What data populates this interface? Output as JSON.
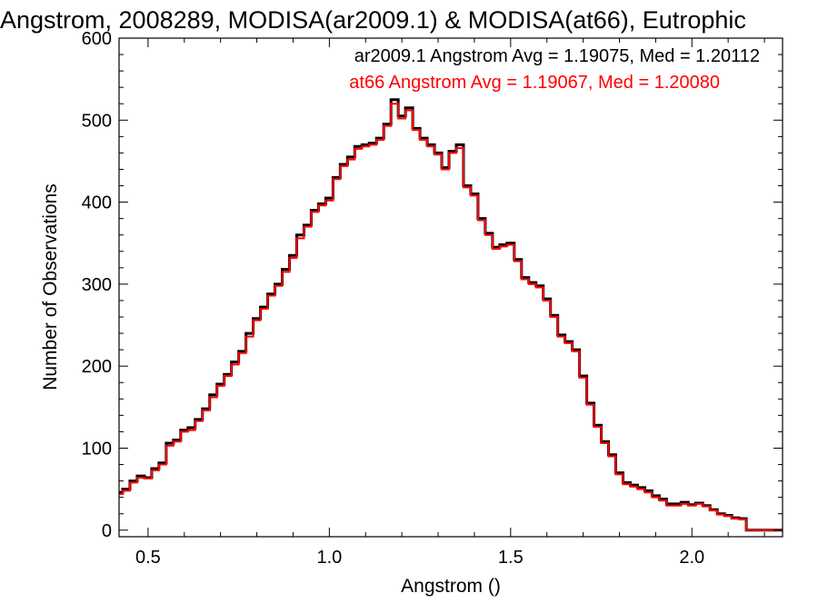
{
  "chart_data": {
    "type": "line",
    "title": "Angstrom, 2008289, MODISA(ar2009.1) & MODISA(at66), Eutrophic",
    "xlabel": "Angstrom ()",
    "ylabel": "Number of Observations",
    "xlim": [
      0.42,
      2.25
    ],
    "ylim": [
      -8,
      600
    ],
    "xticks": [
      {
        "value": 0.5,
        "label": "0.5"
      },
      {
        "value": 1.0,
        "label": "1.0"
      },
      {
        "value": 1.5,
        "label": "1.5"
      },
      {
        "value": 2.0,
        "label": "2.0"
      }
    ],
    "yticks": [
      {
        "value": 0,
        "label": "0"
      },
      {
        "value": 100,
        "label": "100"
      },
      {
        "value": 200,
        "label": "200"
      },
      {
        "value": 300,
        "label": "300"
      },
      {
        "value": 400,
        "label": "400"
      },
      {
        "value": 500,
        "label": "500"
      },
      {
        "value": 600,
        "label": "600"
      }
    ],
    "step": "histogram",
    "legend_position": "top-right",
    "series": [
      {
        "legend": "ar2009.1 Angstrom Avg = 1.19075, Med = 1.20112",
        "color": "#000000",
        "x": [
          0.42,
          0.44,
          0.46,
          0.48,
          0.5,
          0.52,
          0.54,
          0.56,
          0.58,
          0.6,
          0.62,
          0.64,
          0.66,
          0.68,
          0.7,
          0.72,
          0.74,
          0.76,
          0.78,
          0.8,
          0.82,
          0.84,
          0.86,
          0.88,
          0.9,
          0.92,
          0.94,
          0.96,
          0.98,
          1.0,
          1.02,
          1.04,
          1.06,
          1.08,
          1.1,
          1.12,
          1.14,
          1.16,
          1.18,
          1.2,
          1.22,
          1.24,
          1.26,
          1.28,
          1.3,
          1.32,
          1.34,
          1.36,
          1.38,
          1.4,
          1.42,
          1.44,
          1.46,
          1.48,
          1.5,
          1.52,
          1.54,
          1.56,
          1.58,
          1.6,
          1.62,
          1.64,
          1.66,
          1.68,
          1.7,
          1.72,
          1.74,
          1.76,
          1.78,
          1.8,
          1.82,
          1.84,
          1.86,
          1.88,
          1.9,
          1.92,
          1.94,
          1.96,
          1.98,
          2.0,
          2.02,
          2.04,
          2.06,
          2.08,
          2.1,
          2.12,
          2.14,
          2.16,
          2.18,
          2.2,
          2.22,
          2.24
        ],
        "values": [
          46,
          50,
          60,
          66,
          64,
          75,
          82,
          106,
          110,
          122,
          125,
          135,
          148,
          165,
          178,
          190,
          205,
          218,
          240,
          258,
          272,
          288,
          300,
          318,
          335,
          360,
          372,
          390,
          398,
          405,
          430,
          446,
          455,
          468,
          470,
          472,
          478,
          495,
          525,
          505,
          515,
          490,
          478,
          470,
          460,
          442,
          462,
          470,
          420,
          410,
          380,
          362,
          345,
          348,
          350,
          330,
          308,
          302,
          298,
          282,
          262,
          238,
          230,
          220,
          188,
          155,
          128,
          108,
          92,
          70,
          58,
          55,
          52,
          48,
          42,
          38,
          32,
          32,
          34,
          31,
          33,
          30,
          25,
          20,
          18,
          15,
          14,
          0,
          0,
          0,
          0,
          0
        ]
      },
      {
        "legend": "at66 Angstrom Avg = 1.19067, Med = 1.20080",
        "color": "#ff0000",
        "x": [
          0.42,
          0.44,
          0.46,
          0.48,
          0.5,
          0.52,
          0.54,
          0.56,
          0.58,
          0.6,
          0.62,
          0.64,
          0.66,
          0.68,
          0.7,
          0.72,
          0.74,
          0.76,
          0.78,
          0.8,
          0.82,
          0.84,
          0.86,
          0.88,
          0.9,
          0.92,
          0.94,
          0.96,
          0.98,
          1.0,
          1.02,
          1.04,
          1.06,
          1.08,
          1.1,
          1.12,
          1.14,
          1.16,
          1.18,
          1.2,
          1.22,
          1.24,
          1.26,
          1.28,
          1.3,
          1.32,
          1.34,
          1.36,
          1.38,
          1.4,
          1.42,
          1.44,
          1.46,
          1.48,
          1.5,
          1.52,
          1.54,
          1.56,
          1.58,
          1.6,
          1.62,
          1.64,
          1.66,
          1.68,
          1.7,
          1.72,
          1.74,
          1.76,
          1.78,
          1.8,
          1.82,
          1.84,
          1.86,
          1.88,
          1.9,
          1.92,
          1.94,
          1.96,
          1.98,
          2.0,
          2.02,
          2.04,
          2.06,
          2.08,
          2.1,
          2.12,
          2.14,
          2.16,
          2.18,
          2.2,
          2.22,
          2.24
        ],
        "values": [
          44,
          48,
          58,
          64,
          63,
          73,
          80,
          103,
          108,
          120,
          122,
          133,
          146,
          162,
          176,
          188,
          202,
          216,
          236,
          256,
          270,
          286,
          298,
          315,
          332,
          356,
          370,
          388,
          396,
          402,
          428,
          444,
          452,
          465,
          468,
          470,
          476,
          493,
          520,
          502,
          512,
          488,
          476,
          468,
          458,
          440,
          460,
          466,
          418,
          408,
          378,
          360,
          343,
          346,
          348,
          328,
          306,
          300,
          296,
          280,
          260,
          236,
          228,
          218,
          186,
          153,
          126,
          106,
          90,
          68,
          56,
          53,
          50,
          46,
          40,
          36,
          30,
          30,
          32,
          30,
          32,
          29,
          24,
          19,
          17,
          14,
          13,
          0,
          0,
          0,
          0,
          0
        ]
      }
    ],
    "grid": false
  }
}
